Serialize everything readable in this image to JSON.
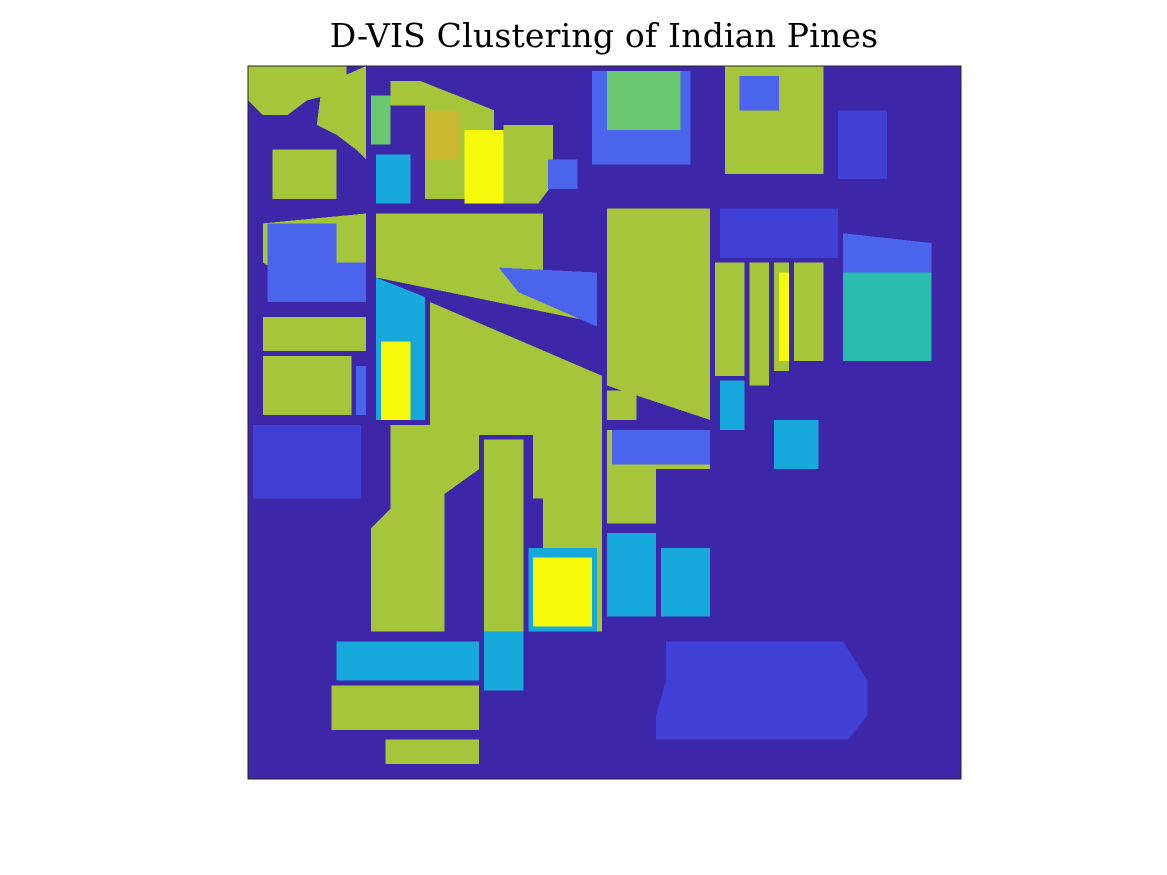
{
  "chart_data": {
    "type": "heatmap",
    "title": "D-VIS Clustering of Indian Pines",
    "xlabel": "",
    "ylabel": "",
    "grid": false,
    "legend": "none",
    "axes_ticks": "hidden",
    "image_size": [
      145,
      145
    ],
    "colormap": "parula",
    "cluster_colors": {
      "background": "#3d26a8",
      "blue_purple": "#4040d6",
      "blue": "#4a64ec",
      "cyan": "#17a8dc",
      "teal": "#2bbcb0",
      "green": "#6ac870",
      "yellow_green": "#a5c63b",
      "gold": "#cab830",
      "yellow": "#f8fa0d"
    },
    "regions": [
      {
        "cluster": "yellow_green",
        "polygon": [
          [
            0,
            0
          ],
          [
            20,
            0
          ],
          [
            20,
            5
          ],
          [
            12,
            7
          ],
          [
            8,
            10
          ],
          [
            3,
            10
          ],
          [
            0,
            7
          ]
        ]
      },
      {
        "cluster": "yellow_green",
        "polygon": [
          [
            15,
            4
          ],
          [
            24,
            0
          ],
          [
            24,
            19
          ],
          [
            22,
            17
          ],
          [
            18,
            14
          ],
          [
            14,
            12
          ]
        ]
      },
      {
        "cluster": "yellow_green",
        "polygon": [
          [
            5,
            17
          ],
          [
            18,
            17
          ],
          [
            18,
            27
          ],
          [
            5,
            27
          ]
        ]
      },
      {
        "cluster": "green",
        "polygon": [
          [
            25,
            6
          ],
          [
            29,
            6
          ],
          [
            29,
            16
          ],
          [
            25,
            16
          ]
        ]
      },
      {
        "cluster": "yellow_green",
        "polygon": [
          [
            29,
            3
          ],
          [
            35,
            3
          ],
          [
            50,
            9
          ],
          [
            50,
            20
          ],
          [
            44,
            27
          ],
          [
            36,
            27
          ],
          [
            36,
            8
          ],
          [
            29,
            8
          ]
        ]
      },
      {
        "cluster": "gold",
        "polygon": [
          [
            36,
            9
          ],
          [
            43,
            9
          ],
          [
            43,
            19
          ],
          [
            36,
            19
          ]
        ]
      },
      {
        "cluster": "yellow",
        "polygon": [
          [
            44,
            13
          ],
          [
            52,
            13
          ],
          [
            52,
            28
          ],
          [
            44,
            28
          ]
        ]
      },
      {
        "cluster": "cyan",
        "polygon": [
          [
            26,
            18
          ],
          [
            33,
            18
          ],
          [
            33,
            28
          ],
          [
            26,
            28
          ]
        ]
      },
      {
        "cluster": "yellow_green",
        "polygon": [
          [
            52,
            12
          ],
          [
            62,
            12
          ],
          [
            62,
            24
          ],
          [
            59,
            28
          ],
          [
            52,
            28
          ]
        ]
      },
      {
        "cluster": "blue",
        "polygon": [
          [
            61,
            19
          ],
          [
            67,
            19
          ],
          [
            67,
            25
          ],
          [
            61,
            25
          ]
        ]
      },
      {
        "cluster": "blue",
        "polygon": [
          [
            70,
            1
          ],
          [
            90,
            1
          ],
          [
            90,
            20
          ],
          [
            70,
            20
          ]
        ]
      },
      {
        "cluster": "green",
        "polygon": [
          [
            73,
            1
          ],
          [
            88,
            1
          ],
          [
            88,
            13
          ],
          [
            73,
            13
          ]
        ]
      },
      {
        "cluster": "yellow_green",
        "polygon": [
          [
            97,
            0
          ],
          [
            117,
            0
          ],
          [
            117,
            22
          ],
          [
            97,
            22
          ]
        ]
      },
      {
        "cluster": "blue",
        "polygon": [
          [
            100,
            2
          ],
          [
            108,
            2
          ],
          [
            108,
            9
          ],
          [
            100,
            9
          ]
        ]
      },
      {
        "cluster": "blue_purple",
        "polygon": [
          [
            120,
            9
          ],
          [
            130,
            9
          ],
          [
            130,
            23
          ],
          [
            120,
            23
          ]
        ]
      },
      {
        "cluster": "yellow_green",
        "polygon": [
          [
            3,
            32
          ],
          [
            24,
            30
          ],
          [
            24,
            48
          ],
          [
            18,
            48
          ],
          [
            3,
            40
          ]
        ]
      },
      {
        "cluster": "blue",
        "polygon": [
          [
            4,
            32
          ],
          [
            18,
            32
          ],
          [
            18,
            48
          ],
          [
            4,
            48
          ]
        ]
      },
      {
        "cluster": "blue",
        "polygon": [
          [
            14,
            40
          ],
          [
            24,
            40
          ],
          [
            24,
            48
          ],
          [
            14,
            48
          ]
        ]
      },
      {
        "cluster": "yellow_green",
        "polygon": [
          [
            26,
            30
          ],
          [
            60,
            30
          ],
          [
            60,
            43
          ],
          [
            70,
            43
          ],
          [
            70,
            52
          ],
          [
            26,
            43
          ]
        ]
      },
      {
        "cluster": "blue",
        "polygon": [
          [
            51,
            41
          ],
          [
            71,
            42
          ],
          [
            71,
            53
          ],
          [
            55,
            46
          ]
        ]
      },
      {
        "cluster": "yellow_green",
        "polygon": [
          [
            3,
            51
          ],
          [
            24,
            51
          ],
          [
            24,
            58
          ],
          [
            3,
            58
          ]
        ]
      },
      {
        "cluster": "yellow_green",
        "polygon": [
          [
            3,
            59
          ],
          [
            21,
            59
          ],
          [
            21,
            71
          ],
          [
            3,
            71
          ]
        ]
      },
      {
        "cluster": "blue",
        "polygon": [
          [
            22,
            61
          ],
          [
            24,
            61
          ],
          [
            24,
            71
          ],
          [
            22,
            71
          ]
        ]
      },
      {
        "cluster": "cyan",
        "polygon": [
          [
            26,
            43
          ],
          [
            36,
            47
          ],
          [
            36,
            72
          ],
          [
            26,
            72
          ]
        ]
      },
      {
        "cluster": "yellow",
        "polygon": [
          [
            27,
            56
          ],
          [
            33,
            56
          ],
          [
            33,
            72
          ],
          [
            27,
            72
          ]
        ]
      },
      {
        "cluster": "yellow_green",
        "polygon": [
          [
            37,
            48
          ],
          [
            72,
            63
          ],
          [
            72,
            88
          ],
          [
            58,
            88
          ],
          [
            58,
            75
          ],
          [
            37,
            75
          ]
        ]
      },
      {
        "cluster": "yellow_green",
        "polygon": [
          [
            73,
            29
          ],
          [
            94,
            29
          ],
          [
            94,
            72
          ],
          [
            73,
            65
          ]
        ]
      },
      {
        "cluster": "blue_purple",
        "polygon": [
          [
            96,
            29
          ],
          [
            120,
            29
          ],
          [
            120,
            39
          ],
          [
            96,
            39
          ]
        ]
      },
      {
        "cluster": "teal",
        "polygon": [
          [
            121,
            34
          ],
          [
            139,
            36
          ],
          [
            139,
            60
          ],
          [
            121,
            60
          ]
        ]
      },
      {
        "cluster": "blue",
        "polygon": [
          [
            121,
            34
          ],
          [
            139,
            36
          ],
          [
            139,
            42
          ],
          [
            121,
            42
          ]
        ]
      },
      {
        "cluster": "yellow_green",
        "polygon": [
          [
            95,
            40
          ],
          [
            101,
            40
          ],
          [
            101,
            63
          ],
          [
            95,
            63
          ]
        ]
      },
      {
        "cluster": "yellow_green",
        "polygon": [
          [
            102,
            40
          ],
          [
            106,
            40
          ],
          [
            106,
            65
          ],
          [
            102,
            65
          ]
        ]
      },
      {
        "cluster": "yellow_green",
        "polygon": [
          [
            107,
            40
          ],
          [
            110,
            40
          ],
          [
            110,
            62
          ],
          [
            107,
            62
          ]
        ]
      },
      {
        "cluster": "yellow_green",
        "polygon": [
          [
            111,
            40
          ],
          [
            117,
            40
          ],
          [
            117,
            60
          ],
          [
            111,
            60
          ]
        ]
      },
      {
        "cluster": "yellow",
        "polygon": [
          [
            108,
            42
          ],
          [
            110,
            42
          ],
          [
            110,
            60
          ],
          [
            108,
            60
          ]
        ]
      },
      {
        "cluster": "cyan",
        "polygon": [
          [
            96,
            64
          ],
          [
            101,
            64
          ],
          [
            101,
            74
          ],
          [
            96,
            74
          ]
        ]
      },
      {
        "cluster": "cyan",
        "polygon": [
          [
            107,
            72
          ],
          [
            116,
            72
          ],
          [
            116,
            82
          ],
          [
            107,
            82
          ]
        ]
      },
      {
        "cluster": "yellow_green",
        "polygon": [
          [
            73,
            66
          ],
          [
            79,
            66
          ],
          [
            79,
            72
          ],
          [
            73,
            72
          ]
        ]
      },
      {
        "cluster": "yellow_green",
        "polygon": [
          [
            73,
            74
          ],
          [
            94,
            74
          ],
          [
            94,
            82
          ],
          [
            83,
            82
          ],
          [
            83,
            93
          ],
          [
            73,
            93
          ]
        ]
      },
      {
        "cluster": "blue",
        "polygon": [
          [
            74,
            74
          ],
          [
            94,
            74
          ],
          [
            94,
            81
          ],
          [
            74,
            81
          ]
        ]
      },
      {
        "cluster": "yellow_green",
        "polygon": [
          [
            29,
            73
          ],
          [
            47,
            73
          ],
          [
            47,
            82
          ],
          [
            40,
            87
          ],
          [
            40,
            115
          ],
          [
            25,
            115
          ],
          [
            25,
            94
          ],
          [
            29,
            90
          ]
        ]
      },
      {
        "cluster": "blue_purple",
        "polygon": [
          [
            1,
            73
          ],
          [
            23,
            73
          ],
          [
            23,
            88
          ],
          [
            1,
            88
          ]
        ]
      },
      {
        "cluster": "yellow_green",
        "polygon": [
          [
            48,
            76
          ],
          [
            56,
            76
          ],
          [
            56,
            115
          ],
          [
            48,
            115
          ]
        ]
      },
      {
        "cluster": "yellow_green",
        "polygon": [
          [
            60,
            88
          ],
          [
            72,
            88
          ],
          [
            72,
            115
          ],
          [
            60,
            115
          ]
        ]
      },
      {
        "cluster": "cyan",
        "polygon": [
          [
            57,
            98
          ],
          [
            71,
            98
          ],
          [
            71,
            115
          ],
          [
            57,
            115
          ]
        ]
      },
      {
        "cluster": "yellow",
        "polygon": [
          [
            58,
            100
          ],
          [
            70,
            100
          ],
          [
            70,
            114
          ],
          [
            58,
            114
          ]
        ]
      },
      {
        "cluster": "cyan",
        "polygon": [
          [
            73,
            95
          ],
          [
            83,
            95
          ],
          [
            83,
            112
          ],
          [
            73,
            112
          ]
        ]
      },
      {
        "cluster": "cyan",
        "polygon": [
          [
            84,
            98
          ],
          [
            94,
            98
          ],
          [
            94,
            112
          ],
          [
            84,
            112
          ]
        ]
      },
      {
        "cluster": "cyan",
        "polygon": [
          [
            18,
            117
          ],
          [
            47,
            117
          ],
          [
            47,
            125
          ],
          [
            18,
            125
          ]
        ]
      },
      {
        "cluster": "cyan",
        "polygon": [
          [
            48,
            115
          ],
          [
            56,
            115
          ],
          [
            56,
            127
          ],
          [
            48,
            127
          ]
        ]
      },
      {
        "cluster": "yellow_green",
        "polygon": [
          [
            17,
            126
          ],
          [
            47,
            126
          ],
          [
            47,
            135
          ],
          [
            17,
            135
          ]
        ]
      },
      {
        "cluster": "yellow_green",
        "polygon": [
          [
            28,
            137
          ],
          [
            47,
            137
          ],
          [
            47,
            142
          ],
          [
            28,
            142
          ]
        ]
      },
      {
        "cluster": "blue_purple",
        "polygon": [
          [
            85,
            117
          ],
          [
            121,
            117
          ],
          [
            126,
            125
          ],
          [
            126,
            132
          ],
          [
            122,
            137
          ],
          [
            83,
            137
          ],
          [
            83,
            132
          ],
          [
            85,
            125
          ]
        ]
      }
    ]
  }
}
